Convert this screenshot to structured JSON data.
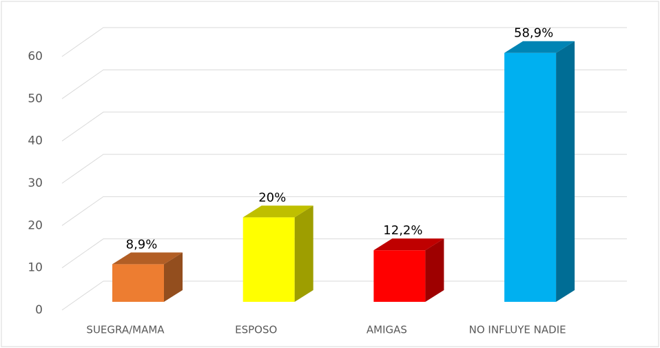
{
  "chart_data": {
    "type": "bar3d",
    "categories": [
      "SUEGRA/MAMA",
      "ESPOSO",
      "AMIGAS",
      "NO INFLUYE NADIE"
    ],
    "values": [
      8.9,
      20,
      12.2,
      58.9
    ],
    "value_labels": [
      "8,9%",
      "20%",
      "12,2%",
      "58,9%"
    ],
    "colors": [
      "#ED7D31",
      "#FFFF00",
      "#FF0000",
      "#00B0F0"
    ],
    "ylim": [
      0,
      60
    ],
    "yticks": [
      0,
      10,
      20,
      30,
      40,
      50,
      60
    ],
    "grid": true
  }
}
